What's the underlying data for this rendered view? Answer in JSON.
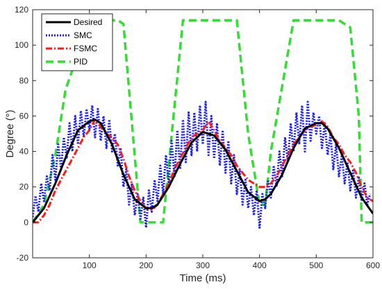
{
  "chart_data": {
    "type": "line",
    "title": "",
    "xlabel": "Time (ms)",
    "ylabel": "Degree (°)",
    "xlim": [
      0,
      600
    ],
    "ylim": [
      -20,
      120
    ],
    "xticks": [
      100,
      200,
      300,
      400,
      500,
      600
    ],
    "yticks": [
      -20,
      0,
      20,
      40,
      60,
      80,
      100,
      120
    ],
    "grid": false,
    "legend": {
      "placement": "top-left"
    },
    "series": [
      {
        "name": "Desired",
        "color": "#000000",
        "style": "solid",
        "x": [
          0,
          20,
          40,
          60,
          80,
          100,
          110,
          120,
          140,
          160,
          180,
          200,
          210,
          220,
          240,
          260,
          280,
          300,
          320,
          340,
          360,
          380,
          400,
          410,
          420,
          440,
          460,
          480,
          500,
          510,
          520,
          540,
          560,
          580,
          600
        ],
        "y": [
          0,
          8,
          22,
          38,
          52,
          57,
          58,
          56,
          44,
          27,
          13,
          8,
          8,
          10,
          20,
          33,
          45,
          51,
          49,
          41,
          29,
          17,
          12,
          13,
          16,
          27,
          42,
          53,
          56,
          56,
          53,
          42,
          28,
          14,
          5
        ]
      },
      {
        "name": "SMC",
        "color": "#1a1aff",
        "style": "dotted",
        "x": [
          0,
          5,
          10,
          15,
          20,
          25,
          30,
          35,
          40,
          45,
          50,
          55,
          60,
          65,
          70,
          75,
          80,
          85,
          90,
          95,
          100,
          105,
          110,
          115,
          120,
          125,
          130,
          135,
          140,
          145,
          150,
          155,
          160,
          165,
          170,
          175,
          180,
          185,
          190,
          195,
          200,
          205,
          210,
          215,
          220,
          225,
          230,
          235,
          240,
          245,
          250,
          255,
          260,
          265,
          270,
          275,
          280,
          285,
          290,
          295,
          300,
          305,
          310,
          315,
          320,
          325,
          330,
          335,
          340,
          345,
          350,
          355,
          360,
          365,
          370,
          375,
          380,
          385,
          390,
          395,
          400,
          405,
          410,
          415,
          420,
          425,
          430,
          435,
          440,
          445,
          450,
          455,
          460,
          465,
          470,
          475,
          480,
          485,
          490,
          495,
          500,
          505,
          510,
          515,
          520,
          525,
          530,
          535,
          540,
          545,
          550,
          555,
          560,
          565,
          570,
          575,
          580,
          585,
          590,
          595
        ],
        "y": [
          3,
          15,
          6,
          22,
          12,
          26,
          18,
          38,
          24,
          44,
          30,
          48,
          36,
          56,
          40,
          60,
          44,
          63,
          48,
          64,
          52,
          66,
          48,
          64,
          46,
          60,
          42,
          58,
          40,
          50,
          32,
          42,
          20,
          30,
          10,
          22,
          4,
          16,
          2,
          14,
          -3,
          18,
          6,
          24,
          12,
          32,
          16,
          38,
          22,
          46,
          26,
          52,
          30,
          58,
          34,
          62,
          38,
          62,
          40,
          66,
          44,
          68,
          38,
          60,
          36,
          56,
          32,
          52,
          28,
          46,
          22,
          38,
          16,
          30,
          10,
          24,
          8,
          20,
          4,
          18,
          -3,
          16,
          8,
          24,
          14,
          32,
          20,
          40,
          26,
          48,
          34,
          56,
          40,
          62,
          44,
          66,
          40,
          68,
          46,
          62,
          50,
          60,
          42,
          56,
          38,
          50,
          30,
          44,
          26,
          38,
          22,
          34,
          18,
          30,
          14,
          26,
          12,
          22,
          10,
          16
        ]
      },
      {
        "name": "FSMC",
        "color": "#ff1a1a",
        "style": "dashdot",
        "x": [
          0,
          10,
          20,
          30,
          40,
          50,
          60,
          70,
          80,
          90,
          100,
          110,
          120,
          130,
          140,
          150,
          160,
          170,
          180,
          190,
          200,
          210,
          220,
          230,
          240,
          250,
          260,
          270,
          280,
          290,
          300,
          310,
          320,
          330,
          340,
          350,
          360,
          370,
          380,
          390,
          400,
          410,
          420,
          430,
          440,
          450,
          460,
          470,
          480,
          490,
          500,
          510,
          520,
          530,
          540,
          550,
          560,
          570,
          580,
          590,
          600
        ],
        "y": [
          0,
          0,
          4,
          10,
          18,
          24,
          30,
          36,
          42,
          48,
          52,
          58,
          54,
          50,
          48,
          44,
          36,
          26,
          18,
          12,
          8,
          7,
          10,
          16,
          22,
          30,
          36,
          42,
          48,
          50,
          52,
          57,
          52,
          46,
          42,
          38,
          32,
          28,
          24,
          22,
          20,
          20,
          22,
          26,
          32,
          38,
          44,
          48,
          52,
          54,
          55,
          57,
          54,
          48,
          44,
          38,
          34,
          28,
          20,
          14,
          12
        ]
      },
      {
        "name": "PID",
        "color": "#33dd33",
        "style": "dashed",
        "x": [
          0,
          20,
          40,
          58,
          80,
          100,
          120,
          140,
          150,
          160,
          190,
          200,
          210,
          220,
          230,
          265,
          300,
          340,
          360,
          380,
          400,
          410,
          415,
          420,
          460,
          500,
          540,
          560,
          575,
          580,
          600
        ],
        "y": [
          0,
          10,
          38,
          75,
          95,
          108,
          114,
          114,
          114,
          112,
          0,
          0,
          0,
          0,
          0,
          114,
          114,
          114,
          114,
          50,
          10,
          10,
          25,
          40,
          114,
          114,
          114,
          110,
          60,
          0,
          0
        ]
      }
    ]
  }
}
